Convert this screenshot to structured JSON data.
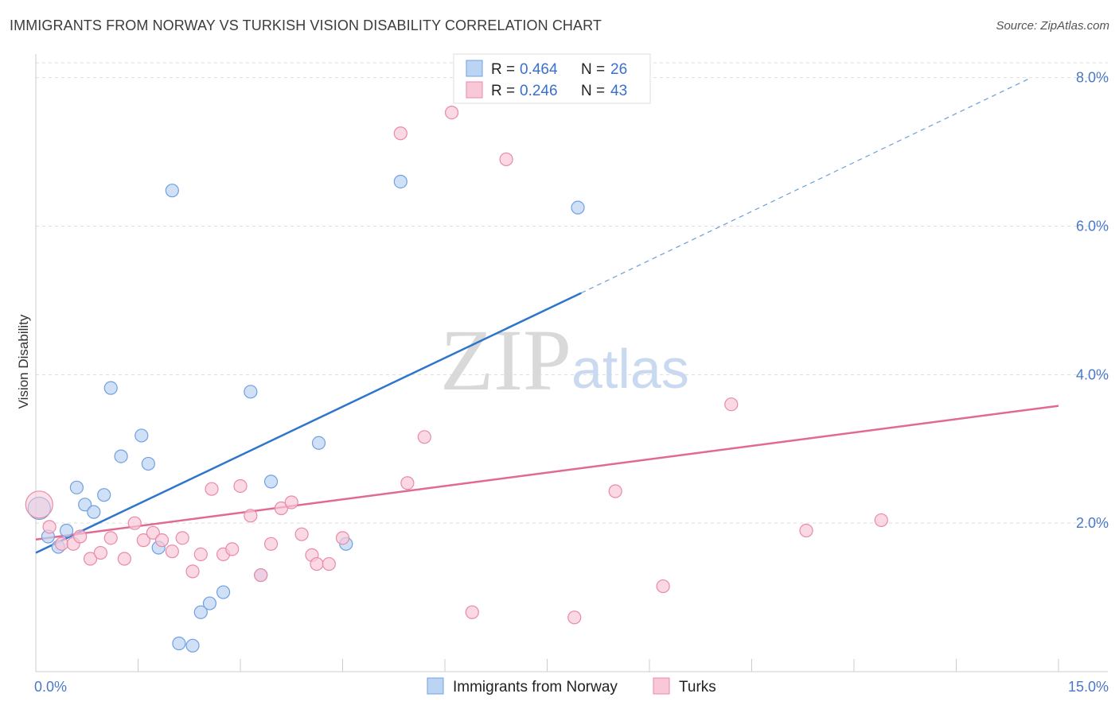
{
  "header": {
    "title": "IMMIGRANTS FROM NORWAY VS TURKISH VISION DISABILITY CORRELATION CHART",
    "source": "Source: ZipAtlas.com"
  },
  "watermark": {
    "zip": "ZIP",
    "atlas": "atlas"
  },
  "chart_data": {
    "type": "scatter",
    "title": "IMMIGRANTS FROM NORWAY VS TURKISH VISION DISABILITY CORRELATION CHART",
    "xlabel": "",
    "ylabel": "Vision Disability",
    "xlim": [
      0,
      15
    ],
    "ylim": [
      0,
      8.2
    ],
    "x_tick_labels": [
      {
        "value": 0,
        "label": "0.0%"
      },
      {
        "value": 15,
        "label": "15.0%"
      }
    ],
    "y_tick_labels": [
      {
        "value": 2,
        "label": "2.0%"
      },
      {
        "value": 4,
        "label": "4.0%"
      },
      {
        "value": 6,
        "label": "6.0%"
      },
      {
        "value": 8,
        "label": "8.0%"
      }
    ],
    "legend": {
      "entries": [
        {
          "name": "Immigrants from Norway",
          "r_label": "R =",
          "r": "0.464",
          "n_label": "N =",
          "n": "26"
        },
        {
          "name": "Turks",
          "r_label": "R =",
          "r": "0.246",
          "n_label": "N =",
          "n": "43"
        }
      ]
    },
    "series": [
      {
        "name": "Immigrants from Norway",
        "color": "#6fa0e0",
        "fill": "#bcd4f4",
        "line_color": "#2e75cc",
        "trend": {
          "x0": 0,
          "y0": 1.6,
          "x1": 8.0,
          "y1": 5.1,
          "dashed_to_x": 14.6,
          "dashed_to_y": 8.0
        },
        "points": [
          [
            0.05,
            2.2
          ],
          [
            0.18,
            1.82
          ],
          [
            0.33,
            1.68
          ],
          [
            0.45,
            1.9
          ],
          [
            0.6,
            2.48
          ],
          [
            0.72,
            2.25
          ],
          [
            0.85,
            2.15
          ],
          [
            1.0,
            2.38
          ],
          [
            1.1,
            3.82
          ],
          [
            1.25,
            2.9
          ],
          [
            1.55,
            3.18
          ],
          [
            1.65,
            2.8
          ],
          [
            1.8,
            1.67
          ],
          [
            2.0,
            6.48
          ],
          [
            2.3,
            0.35
          ],
          [
            2.42,
            0.8
          ],
          [
            2.55,
            0.92
          ],
          [
            2.75,
            1.07
          ],
          [
            3.15,
            3.77
          ],
          [
            3.3,
            1.3
          ],
          [
            3.45,
            2.56
          ],
          [
            4.15,
            3.08
          ],
          [
            4.55,
            1.72
          ],
          [
            5.35,
            6.6
          ],
          [
            7.95,
            6.25
          ],
          [
            2.1,
            0.38
          ]
        ]
      },
      {
        "name": "Turks",
        "color": "#e88aa8",
        "fill": "#f8c8d8",
        "line_color": "#e06a93",
        "trend": {
          "x0": 0,
          "y0": 1.78,
          "x1": 15.0,
          "y1": 3.58
        },
        "points": [
          [
            0.05,
            2.25
          ],
          [
            0.2,
            1.95
          ],
          [
            0.38,
            1.72
          ],
          [
            0.55,
            1.72
          ],
          [
            0.65,
            1.82
          ],
          [
            0.8,
            1.52
          ],
          [
            0.95,
            1.6
          ],
          [
            1.1,
            1.8
          ],
          [
            1.3,
            1.52
          ],
          [
            1.45,
            2.0
          ],
          [
            1.58,
            1.77
          ],
          [
            1.72,
            1.87
          ],
          [
            1.85,
            1.77
          ],
          [
            2.0,
            1.62
          ],
          [
            2.15,
            1.8
          ],
          [
            2.3,
            1.35
          ],
          [
            2.42,
            1.58
          ],
          [
            2.58,
            2.46
          ],
          [
            2.75,
            1.58
          ],
          [
            2.88,
            1.65
          ],
          [
            3.0,
            2.5
          ],
          [
            3.15,
            2.1
          ],
          [
            3.3,
            1.3
          ],
          [
            3.45,
            1.72
          ],
          [
            3.6,
            2.2
          ],
          [
            3.75,
            2.28
          ],
          [
            3.9,
            1.85
          ],
          [
            4.05,
            1.57
          ],
          [
            4.12,
            1.45
          ],
          [
            4.3,
            1.45
          ],
          [
            4.5,
            1.8
          ],
          [
            5.35,
            7.25
          ],
          [
            5.45,
            2.54
          ],
          [
            5.7,
            3.16
          ],
          [
            6.1,
            7.53
          ],
          [
            6.4,
            0.8
          ],
          [
            6.9,
            6.9
          ],
          [
            7.9,
            0.73
          ],
          [
            8.5,
            2.43
          ],
          [
            9.2,
            1.15
          ],
          [
            10.2,
            3.6
          ],
          [
            11.3,
            1.9
          ],
          [
            12.4,
            2.04
          ]
        ]
      }
    ]
  }
}
